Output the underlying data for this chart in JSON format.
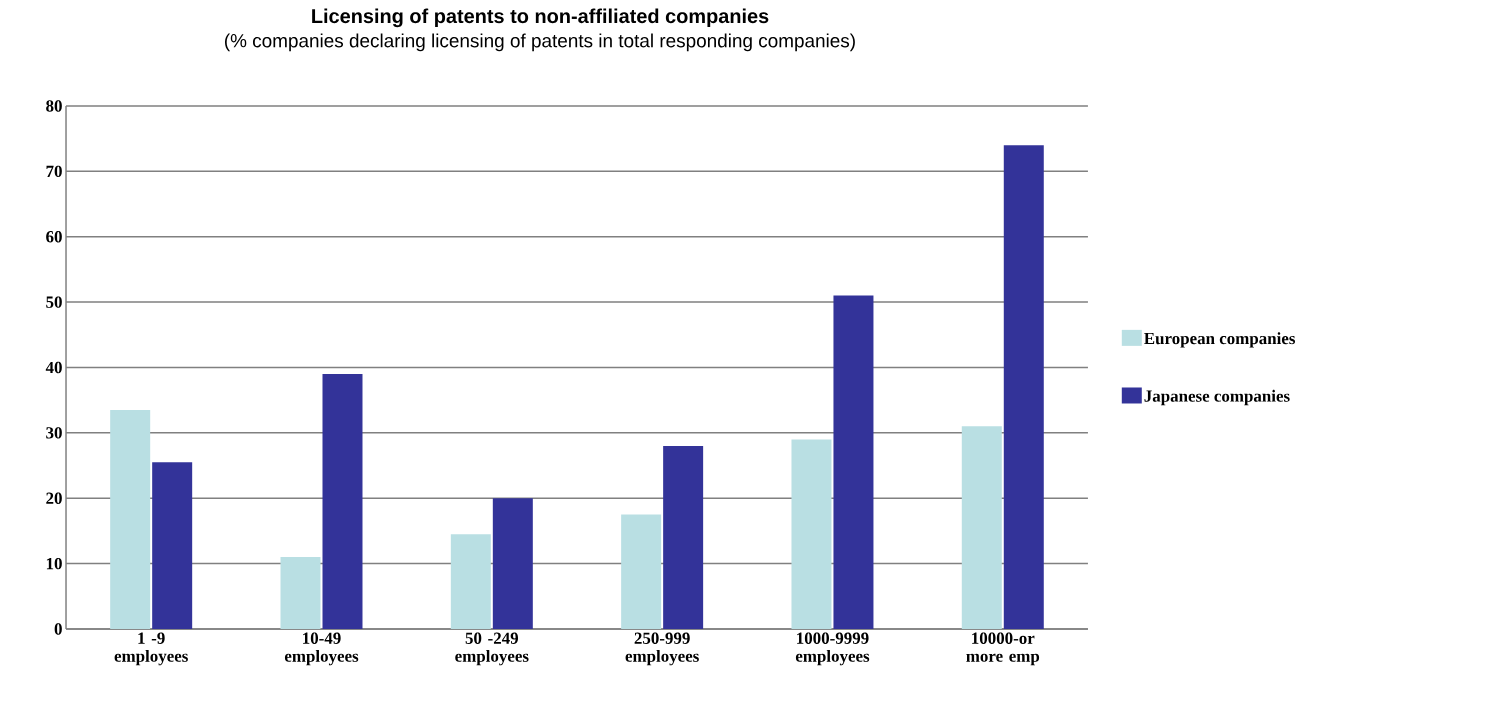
{
  "chart_data": {
    "type": "bar",
    "title": "Licensing of patents to non-affiliated companies",
    "subtitle": "(% companies declaring licensing of patents in total responding companies)",
    "categories": [
      "1 -9 employees",
      "10-49 employees",
      "50 -249 employees",
      "250-999 employees",
      "1000-9999 employees",
      "10000-or more emp"
    ],
    "series": [
      {
        "name": "European companies",
        "color": "#b9dfe3",
        "values": [
          33.5,
          11,
          14.5,
          17.5,
          29,
          31
        ]
      },
      {
        "name": "Japanese companies",
        "color": "#333399",
        "values": [
          25.5,
          39,
          20,
          28,
          51,
          74
        ]
      }
    ],
    "ylim": [
      0,
      80
    ],
    "yticks": [
      0,
      10,
      20,
      30,
      40,
      50,
      60,
      70,
      80
    ],
    "grid": "y",
    "legend": "right"
  }
}
